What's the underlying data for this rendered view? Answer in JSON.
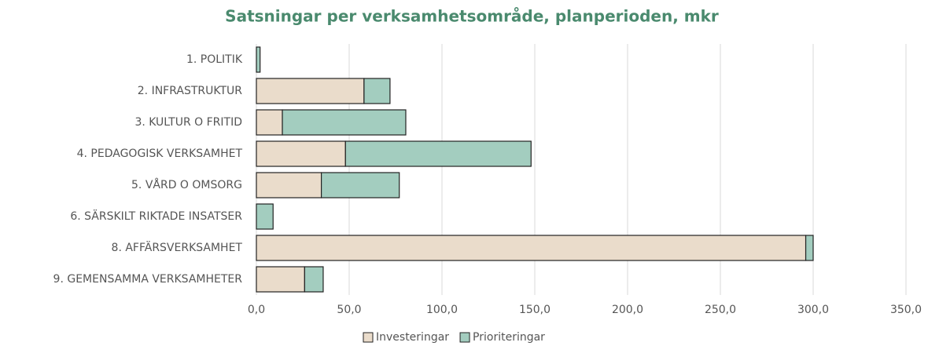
{
  "chart_data": {
    "type": "stacked_barh",
    "title": "Satsningar per verksamhetsområde, planperioden, mkr",
    "categories": [
      "1. POLITIK",
      "2. INFRASTRUKTUR",
      "3. KULTUR O FRITID",
      "4. PEDAGOGISK VERKSAMHET",
      "5. VÅRD O OMSORG",
      "6. SÄRSKILT RIKTADE INSATSER",
      "8. AFFÄRSVERKSAMHET",
      "9. GEMENSAMMA VERKSAMHETER"
    ],
    "series": [
      {
        "name": "Investeringar",
        "color": "#eadccb",
        "values": [
          0,
          58,
          14,
          48,
          35,
          0,
          296,
          26
        ]
      },
      {
        "name": "Prioriteringar",
        "color": "#a3cdbf",
        "values": [
          2,
          14,
          66.5,
          100,
          42,
          9,
          4,
          10
        ]
      }
    ],
    "xlim": [
      0,
      350
    ],
    "xticks": [
      {
        "value": 0,
        "label": "0,0"
      },
      {
        "value": 50,
        "label": "50,0"
      },
      {
        "value": 100,
        "label": "100,0"
      },
      {
        "value": 150,
        "label": "150,0"
      },
      {
        "value": 200,
        "label": "200,0"
      },
      {
        "value": 250,
        "label": "250,0"
      },
      {
        "value": 300,
        "label": "300,0"
      },
      {
        "value": 350,
        "label": "350,0"
      }
    ],
    "grid": true,
    "legend": "bottom"
  }
}
